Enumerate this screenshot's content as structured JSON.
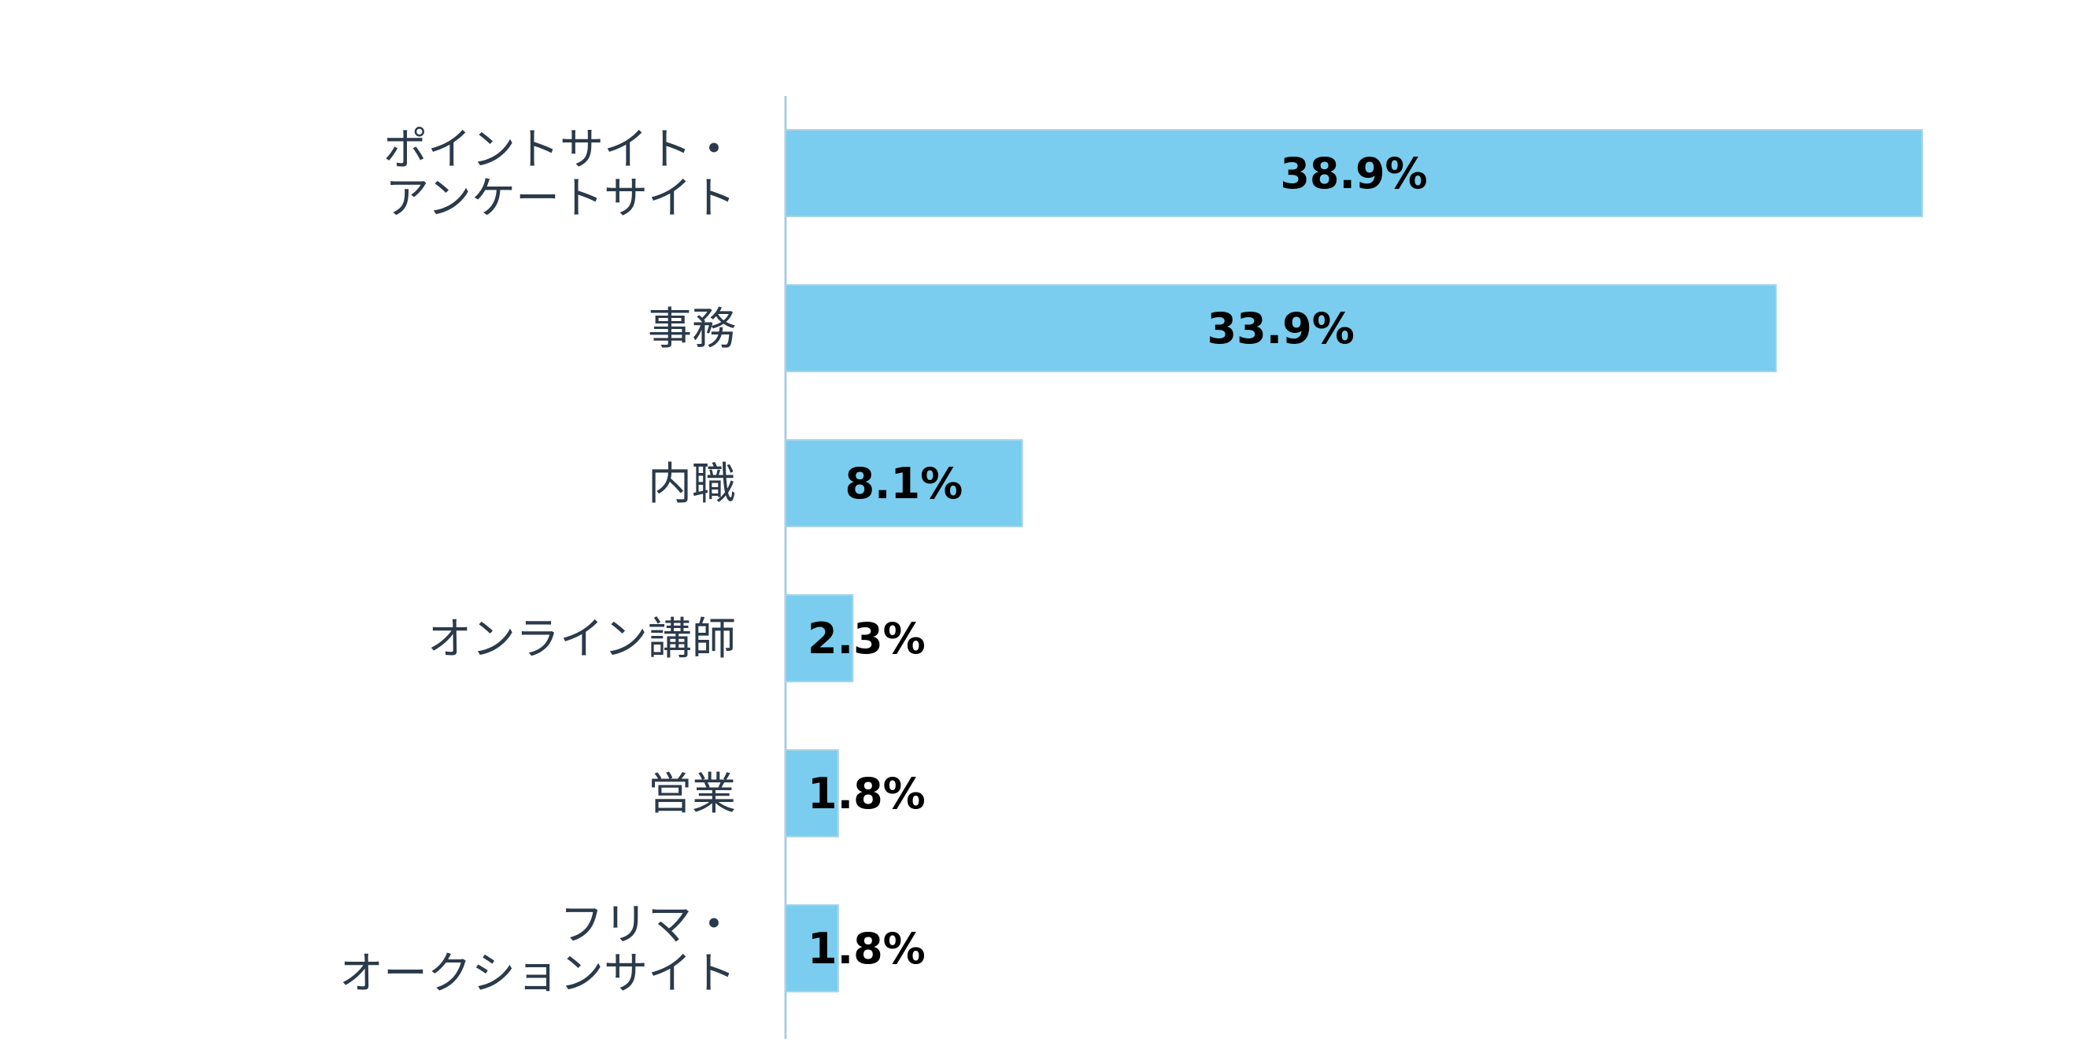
{
  "chart_data": {
    "type": "bar",
    "orientation": "horizontal",
    "categories": [
      [
        "ポイントサイト・",
        "アンケートサイト"
      ],
      [
        "事務"
      ],
      [
        "内職"
      ],
      [
        "オンライン講師"
      ],
      [
        "営業"
      ],
      [
        "フリマ・",
        "オークションサイト"
      ]
    ],
    "values": [
      38.9,
      33.9,
      8.1,
      2.3,
      1.8,
      1.8
    ],
    "value_labels": [
      "38.9%",
      "33.9%",
      "8.1%",
      "2.3%",
      "1.8%",
      "1.8%"
    ],
    "xlim": [
      0,
      38.9
    ],
    "grid": false,
    "legend": "none",
    "colors": {
      "bar": "#7acdee",
      "bar_edge": "#a9d4e6",
      "axis": "#a9cde0",
      "category_text": "#2b3a4a",
      "value_text": "#000000"
    }
  }
}
